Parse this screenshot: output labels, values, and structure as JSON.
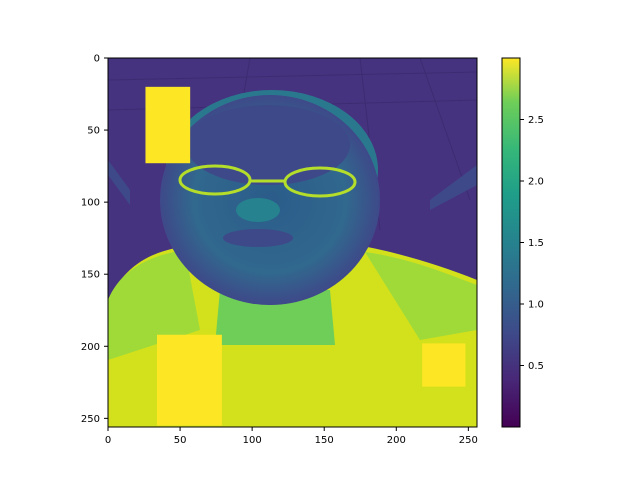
{
  "chart_data": {
    "type": "heatmap",
    "title": "",
    "xlabel": "",
    "ylabel": "",
    "colormap": "viridis",
    "x_range": [
      0,
      255
    ],
    "y_range": [
      0,
      255
    ],
    "y_inverted": true,
    "x_ticks": [
      "0",
      "50",
      "100",
      "150",
      "200",
      "250"
    ],
    "y_ticks": [
      "0",
      "50",
      "100",
      "150",
      "200",
      "250"
    ],
    "colorbar": {
      "range": [
        0.0,
        3.0
      ],
      "ticks": [
        "0.5",
        "1.0",
        "1.5",
        "2.0",
        "2.5"
      ],
      "tick_values": [
        0.5,
        1.0,
        1.5,
        2.0,
        2.5
      ]
    },
    "image_description_regions": {
      "background_level": 0.3,
      "body_level": 2.6,
      "face_level": 1.3,
      "occlusion_patches": [
        {
          "x0": 26,
          "x1": 57,
          "y0": 20,
          "y1": 73,
          "value": 3.0
        },
        {
          "x0": 34,
          "x1": 79,
          "y0": 192,
          "y1": 255,
          "value": 3.0
        },
        {
          "x0": 218,
          "x1": 248,
          "y0": 198,
          "y1": 228,
          "value": 3.0
        }
      ]
    }
  }
}
